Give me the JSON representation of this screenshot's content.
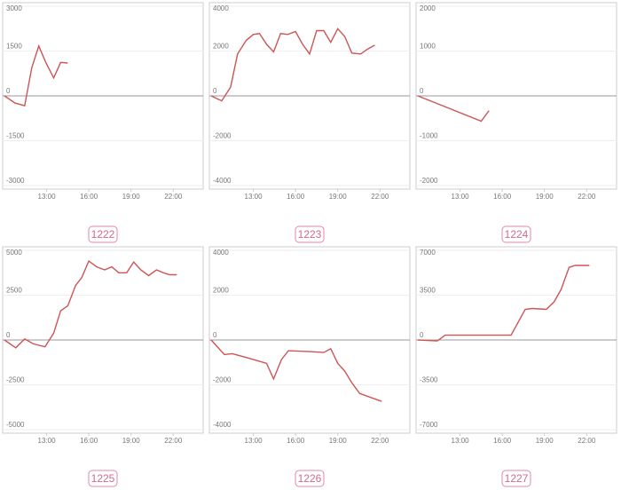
{
  "chart_data": [
    {
      "type": "line",
      "title": "1222",
      "xlim": [
        10,
        24
      ],
      "ylim": [
        -3000,
        3000
      ],
      "xticks": [
        {
          "value": 13,
          "label": "13:00"
        },
        {
          "value": 16,
          "label": "16:00"
        },
        {
          "value": 19,
          "label": "19:00"
        },
        {
          "value": 22,
          "label": "22:00"
        }
      ],
      "yticks": [
        -3000,
        -1500,
        0,
        1500,
        3000
      ],
      "grid": true,
      "color": "#cd5555",
      "x": [
        10,
        10.75,
        11.44,
        11.94,
        12.44,
        12.94,
        13.5,
        14,
        14.5
      ],
      "values": [
        0,
        -240,
        -330,
        940,
        1670,
        1120,
        600,
        1120,
        1100
      ]
    },
    {
      "type": "line",
      "title": "1223",
      "xlim": [
        10,
        24
      ],
      "ylim": [
        -4000,
        4000
      ],
      "xticks": [
        {
          "value": 13,
          "label": "13:00"
        },
        {
          "value": 16,
          "label": "16:00"
        },
        {
          "value": 19,
          "label": "19:00"
        },
        {
          "value": 22,
          "label": "22:00"
        }
      ],
      "yticks": [
        -4000,
        -2000,
        0,
        2000,
        4000
      ],
      "grid": true,
      "color": "#cd5555",
      "x": [
        10,
        10.75,
        11.38,
        11.88,
        12.5,
        13,
        13.44,
        13.94,
        14.44,
        14.94,
        15.44,
        16,
        16.5,
        17,
        17.5,
        18,
        18.5,
        19,
        19.5,
        20,
        20.63,
        21.13,
        21.63
      ],
      "values": [
        0,
        -220,
        390,
        1870,
        2480,
        2740,
        2780,
        2300,
        1960,
        2780,
        2740,
        2870,
        2300,
        1870,
        2910,
        2910,
        2390,
        3000,
        2650,
        1910,
        1870,
        2090,
        2260
      ]
    },
    {
      "type": "line",
      "title": "1224",
      "xlim": [
        10,
        24
      ],
      "ylim": [
        -2000,
        2000
      ],
      "xticks": [
        {
          "value": 13,
          "label": "13:00"
        },
        {
          "value": 16,
          "label": "16:00"
        },
        {
          "value": 19,
          "label": "19:00"
        },
        {
          "value": 22,
          "label": "22:00"
        }
      ],
      "yticks": [
        -2000,
        -1000,
        0,
        1000,
        2000
      ],
      "grid": true,
      "color": "#cd5555",
      "x": [
        10,
        14.5,
        15.06
      ],
      "values": [
        0,
        -565,
        -330
      ]
    },
    {
      "type": "line",
      "title": "1225",
      "xlim": [
        10,
        24
      ],
      "ylim": [
        -5000,
        5000
      ],
      "xticks": [
        {
          "value": 13,
          "label": "13:00"
        },
        {
          "value": 16,
          "label": "16:00"
        },
        {
          "value": 19,
          "label": "19:00"
        },
        {
          "value": 22,
          "label": "22:00"
        }
      ],
      "yticks": [
        -5000,
        -2500,
        0,
        2500,
        5000
      ],
      "grid": true,
      "color": "#cd5555",
      "x": [
        10,
        10.81,
        11.44,
        12.06,
        12.88,
        13.5,
        14,
        14.5,
        15.06,
        15.5,
        16,
        16.56,
        17.13,
        17.63,
        18.13,
        18.69,
        19.19,
        19.69,
        20.25,
        20.81,
        21.31,
        21.75,
        22.25
      ],
      "values": [
        0,
        -435,
        54,
        -217,
        -380,
        380,
        1630,
        1900,
        3040,
        3480,
        4400,
        4080,
        3910,
        4080,
        3750,
        3750,
        4350,
        3910,
        3590,
        3910,
        3750,
        3640,
        3640
      ]
    },
    {
      "type": "line",
      "title": "1226",
      "xlim": [
        10,
        24
      ],
      "ylim": [
        -4000,
        4000
      ],
      "xticks": [
        {
          "value": 13,
          "label": "13:00"
        },
        {
          "value": 16,
          "label": "16:00"
        },
        {
          "value": 19,
          "label": "19:00"
        },
        {
          "value": 22,
          "label": "22:00"
        }
      ],
      "yticks": [
        -4000,
        -2000,
        0,
        2000,
        4000
      ],
      "grid": true,
      "color": "#cd5555",
      "x": [
        10,
        10.94,
        11.5,
        12.5,
        13.94,
        14.44,
        15,
        15.5,
        17,
        18,
        18.5,
        19,
        19.5,
        20,
        20.56,
        22.13
      ],
      "values": [
        0,
        -650,
        -610,
        -780,
        -1040,
        -1740,
        -870,
        -480,
        -520,
        -560,
        -390,
        -1040,
        -1390,
        -1910,
        -2390,
        -2740
      ]
    },
    {
      "type": "line",
      "title": "1227",
      "xlim": [
        10,
        24
      ],
      "ylim": [
        -7000,
        7000
      ],
      "xticks": [
        {
          "value": 13,
          "label": "13:00"
        },
        {
          "value": 16,
          "label": "16:00"
        },
        {
          "value": 19,
          "label": "19:00"
        },
        {
          "value": 22,
          "label": "22:00"
        }
      ],
      "yticks": [
        -7000,
        -3500,
        0,
        3500,
        7000
      ],
      "grid": true,
      "color": "#cd5555",
      "x": [
        10,
        11.38,
        11.94,
        16.63,
        17.63,
        18.13,
        19.13,
        19.69,
        20.19,
        20.75,
        21.19,
        22.19
      ],
      "values": [
        0,
        -75,
        375,
        375,
        2390,
        2460,
        2390,
        2990,
        3960,
        5670,
        5820,
        5820
      ]
    }
  ]
}
